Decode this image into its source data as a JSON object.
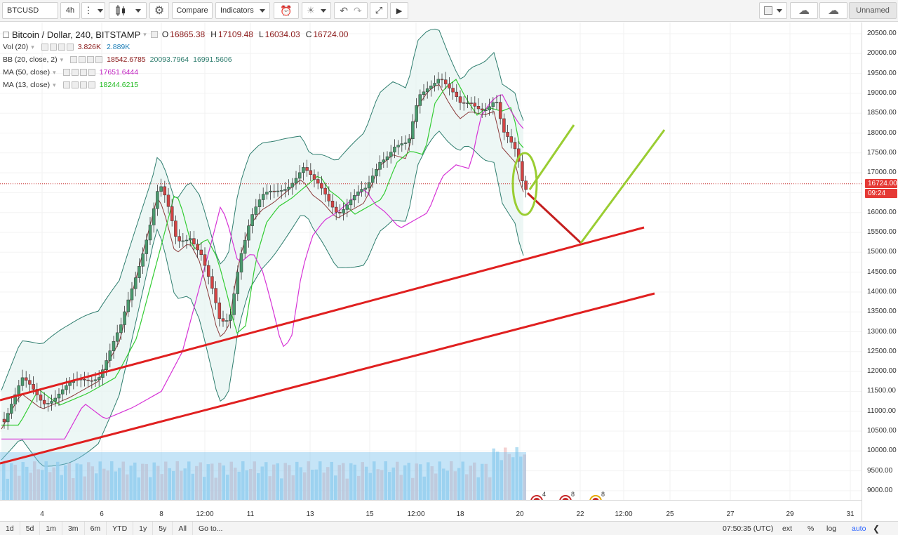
{
  "toolbar": {
    "symbol": "BTCUSD",
    "interval": "4h",
    "compare_label": "Compare",
    "indicators_label": "Indicators",
    "layout_name": "Unnamed"
  },
  "legend": {
    "title": "Bitcoin / Dollar, 240, BITSTAMP",
    "ohlc": {
      "o_label": "O",
      "o": "16865.38",
      "h_label": "H",
      "h": "17109.48",
      "l_label": "L",
      "l": "16034.03",
      "c_label": "C",
      "c": "16724.00"
    },
    "vol": {
      "label": "Vol (20)",
      "v1": "3.826K",
      "v2": "2.889K"
    },
    "bb": {
      "label": "BB (20, close, 2)",
      "v1": "18542.6785",
      "v2": "20093.7964",
      "v3": "16991.5606"
    },
    "ma50": {
      "label": "MA (50, close)",
      "v": "17651.6444"
    },
    "ma13": {
      "label": "MA (13, close)",
      "v": "18244.6215"
    }
  },
  "price_scale": {
    "ticks": [
      "20500.00",
      "20000.00",
      "19500.00",
      "19000.00",
      "18500.00",
      "18000.00",
      "17500.00",
      "17000.00",
      "16500.00",
      "16000.00",
      "15500.00",
      "15000.00",
      "14500.00",
      "14000.00",
      "13500.00",
      "13000.00",
      "12500.00",
      "12000.00",
      "11500.00",
      "11000.00",
      "10500.00",
      "10000.00",
      "9500.00",
      "9000.00"
    ],
    "last_price": "16724.00",
    "countdown": "09:24"
  },
  "time_axis": {
    "ticks": [
      "4",
      "6",
      "8",
      "12:00",
      "11",
      "13",
      "15",
      "12:00",
      "18",
      "20",
      "22",
      "12:00",
      "25",
      "27",
      "29",
      "31"
    ]
  },
  "bottom_bar": {
    "ranges": [
      "1d",
      "5d",
      "1m",
      "3m",
      "6m",
      "YTD",
      "1y",
      "5y",
      "All"
    ],
    "goto": "Go to...",
    "clock": "07:50:35 (UTC)",
    "ext": "ext",
    "percent": "%",
    "log": "log",
    "auto": "auto"
  },
  "events": [
    {
      "count": "4"
    },
    {
      "count": "8"
    },
    {
      "count": "8"
    }
  ],
  "colors": {
    "up": "#4a9a6e",
    "down": "#d34444",
    "bb_fill": "#e6f4f1",
    "ma50": "#d633d6",
    "ma13": "#33cc33",
    "basis": "#8b3a3a",
    "trend_red": "#e02020",
    "annot_green": "#9acd32"
  }
}
